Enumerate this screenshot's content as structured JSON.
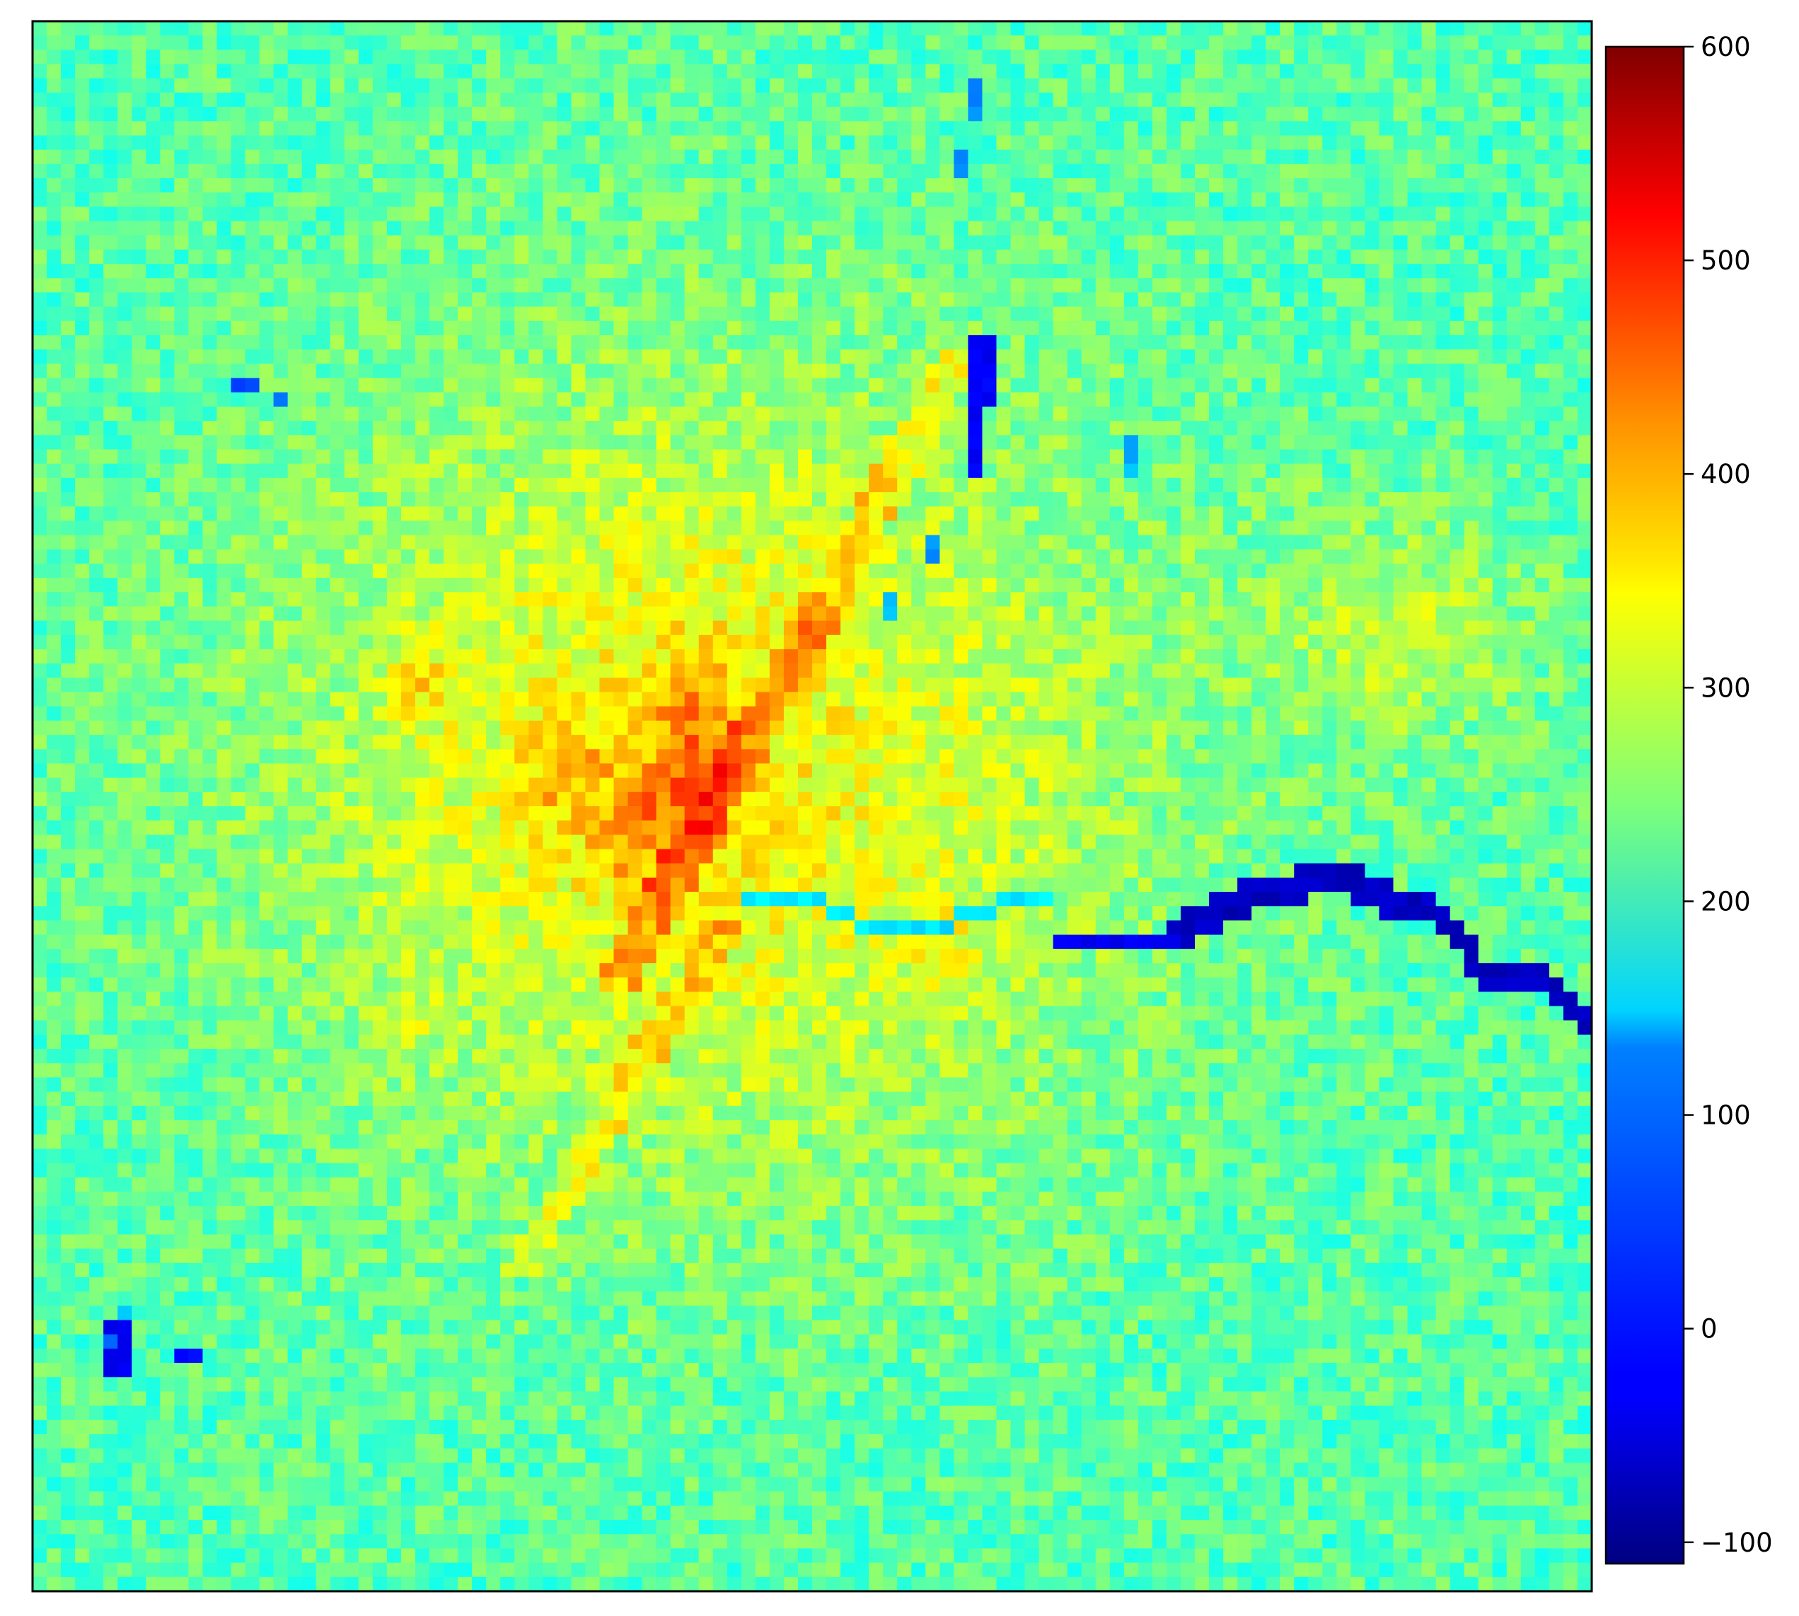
{
  "chart_data": {
    "type": "heatmap",
    "title": "",
    "xlabel": "",
    "ylabel": "",
    "x_ticks_visible": false,
    "y_ticks_visible": false,
    "grid": false,
    "colormap": "jet",
    "value_range": [
      -110,
      600
    ],
    "grid_shape": {
      "rows": 110,
      "cols": 110
    },
    "colorbar": {
      "position": "right",
      "ticks": [
        {
          "value": 600,
          "label": "600"
        },
        {
          "value": 500,
          "label": "500"
        },
        {
          "value": 400,
          "label": "400"
        },
        {
          "value": 300,
          "label": "300"
        },
        {
          "value": 200,
          "label": "200"
        },
        {
          "value": 100,
          "label": "100"
        },
        {
          "value": 0,
          "label": "0"
        },
        {
          "value": -100,
          "label": "−100"
        }
      ]
    },
    "field_summary": {
      "background_level": 215,
      "urban_core_peak": 430,
      "river_level": -80,
      "lake_level": -40
    }
  }
}
